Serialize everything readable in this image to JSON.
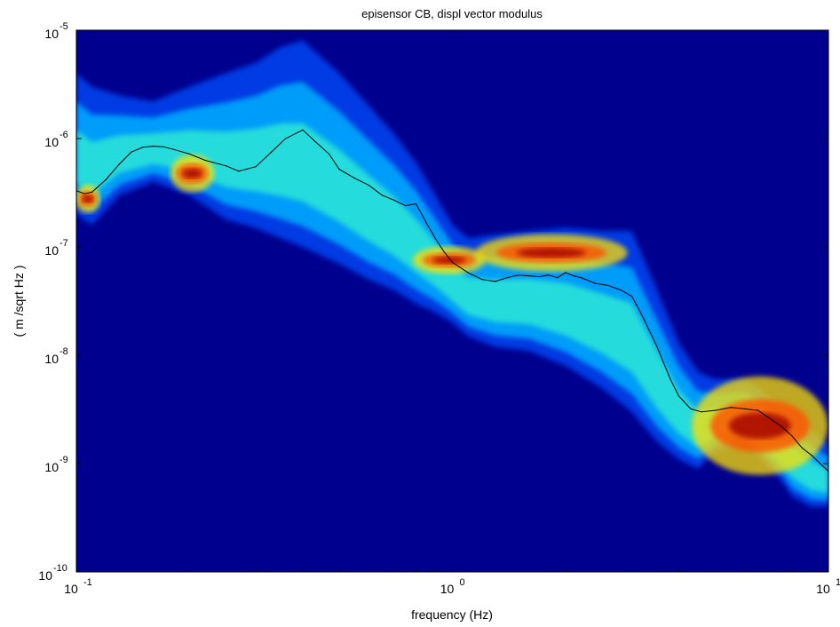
{
  "chart_data": {
    "type": "heatmap",
    "title": "episensor CB, displ vector modulus",
    "xlabel": "frequency (Hz)",
    "ylabel": "( m /sqrt Hz )",
    "xscale": "log",
    "yscale": "log",
    "xlim": [
      0.1,
      10
    ],
    "ylim": [
      1e-10,
      1e-05
    ],
    "x_ticks": [
      {
        "value": 0.1,
        "base": "10",
        "exp": "-1"
      },
      {
        "value": 1,
        "base": "10",
        "exp": "0"
      },
      {
        "value": 10,
        "base": "10",
        "exp": "1"
      }
    ],
    "y_ticks": [
      {
        "value": 1e-10,
        "base": "10",
        "exp": "-10"
      },
      {
        "value": 1e-09,
        "base": "10",
        "exp": "-9"
      },
      {
        "value": 1e-08,
        "base": "10",
        "exp": "-8"
      },
      {
        "value": 1e-07,
        "base": "10",
        "exp": "-7"
      },
      {
        "value": 1e-06,
        "base": "10",
        "exp": "-6"
      },
      {
        "value": 1e-05,
        "base": "10",
        "exp": "-5"
      }
    ],
    "grid": false,
    "background_color": "#00008f",
    "colormap": "jet",
    "line_color": "#000000",
    "density_band": {
      "frequency": [
        0.1,
        0.11,
        0.13,
        0.16,
        0.2,
        0.25,
        0.3,
        0.35,
        0.4,
        0.5,
        0.6,
        0.7,
        0.8,
        0.9,
        1.0,
        1.1,
        1.3,
        1.6,
        2.0,
        2.5,
        3.0,
        3.5,
        4.0,
        4.5,
        5.0,
        5.5,
        6.0,
        6.5,
        7.0,
        7.5,
        8.0,
        9.0,
        10.0
      ],
      "lower": [
        2e-07,
        1.6e-07,
        3e-07,
        4e-07,
        3e-07,
        1.8e-07,
        1.5e-07,
        1.2e-07,
        1e-07,
        7e-08,
        5e-08,
        4e-08,
        3e-08,
        2.5e-08,
        2e-08,
        1.5e-08,
        1.2e-08,
        1.1e-08,
        8e-09,
        5e-09,
        3e-09,
        1.6e-09,
        1.1e-09,
        9e-10,
        1.3e-09,
        1.4e-09,
        1.6e-09,
        1.2e-09,
        9e-10,
        7e-10,
        5e-10,
        4e-10,
        4e-10
      ],
      "upper": [
        4e-06,
        3e-06,
        2.5e-06,
        2.2e-06,
        3e-06,
        4e-06,
        5e-06,
        7e-06,
        8e-06,
        4e-06,
        2e-06,
        1.1e-06,
        6e-07,
        3e-07,
        1.6e-07,
        1.2e-07,
        1.3e-07,
        1.4e-07,
        1.5e-07,
        1.4e-07,
        1.4e-07,
        4e-08,
        1.3e-08,
        7e-09,
        6e-09,
        6e-09,
        6e-09,
        5e-09,
        4e-09,
        3.5e-09,
        3e-09,
        2e-09,
        1.5e-09
      ],
      "hot_regions": [
        {
          "frequency": [
            0.1,
            0.115
          ],
          "level": [
            2.2e-07,
            3.5e-07
          ]
        },
        {
          "frequency": [
            0.18,
            0.23
          ],
          "level": [
            3.5e-07,
            6.5e-07
          ]
        },
        {
          "frequency": [
            0.8,
            1.2
          ],
          "level": [
            6e-08,
            9.5e-08
          ]
        },
        {
          "frequency": [
            1.2,
            2.8
          ],
          "level": [
            6.5e-08,
            1.2e-07
          ]
        },
        {
          "frequency": [
            4.5,
            9.6
          ],
          "level": [
            1e-09,
            5e-09
          ]
        }
      ]
    },
    "series": [
      {
        "x": [
          0.1,
          0.105,
          0.11,
          0.12,
          0.13,
          0.14,
          0.15,
          0.16,
          0.17,
          0.18,
          0.2,
          0.22,
          0.25,
          0.27,
          0.3,
          0.33,
          0.36,
          0.4,
          0.43,
          0.47,
          0.5,
          0.55,
          0.6,
          0.65,
          0.7,
          0.75,
          0.8,
          0.85,
          0.9,
          0.95,
          1.0,
          1.1,
          1.2,
          1.3,
          1.4,
          1.5,
          1.6,
          1.7,
          1.8,
          1.9,
          2.0,
          2.1,
          2.2,
          2.4,
          2.6,
          2.8,
          3.0,
          3.2,
          3.5,
          3.8,
          4.0,
          4.3,
          4.6,
          5.0,
          5.5,
          6.0,
          6.5,
          7.0,
          7.5,
          8.0,
          8.5,
          9.0,
          9.5,
          10.0
        ],
        "y": [
          3.3e-07,
          3.1e-07,
          3.2e-07,
          4.2e-07,
          5.8e-07,
          7.5e-07,
          8.3e-07,
          8.5e-07,
          8.4e-07,
          8e-07,
          7.2e-07,
          6.3e-07,
          5.6e-07,
          5e-07,
          5.5e-07,
          7.5e-07,
          1e-06,
          1.2e-06,
          9.5e-07,
          7.2e-07,
          5.2e-07,
          4.3e-07,
          3.7e-07,
          3e-07,
          2.7e-07,
          2.4e-07,
          2.5e-07,
          1.7e-07,
          1.2e-07,
          9e-08,
          7.2e-08,
          5.8e-08,
          5e-08,
          4.8e-08,
          5.2e-08,
          5.5e-08,
          5.4e-08,
          5.3e-08,
          5.5e-08,
          5.2e-08,
          5.8e-08,
          5.4e-08,
          5.2e-08,
          4.6e-08,
          4.4e-08,
          4e-08,
          3.5e-08,
          2.3e-08,
          1.2e-08,
          6e-09,
          4.2e-09,
          3.2e-09,
          3e-09,
          3.1e-09,
          3.3e-09,
          3.2e-09,
          3.1e-09,
          2.6e-09,
          2.2e-09,
          1.8e-09,
          1.4e-09,
          1.2e-09,
          1e-09,
          8.5e-10
        ]
      }
    ]
  }
}
